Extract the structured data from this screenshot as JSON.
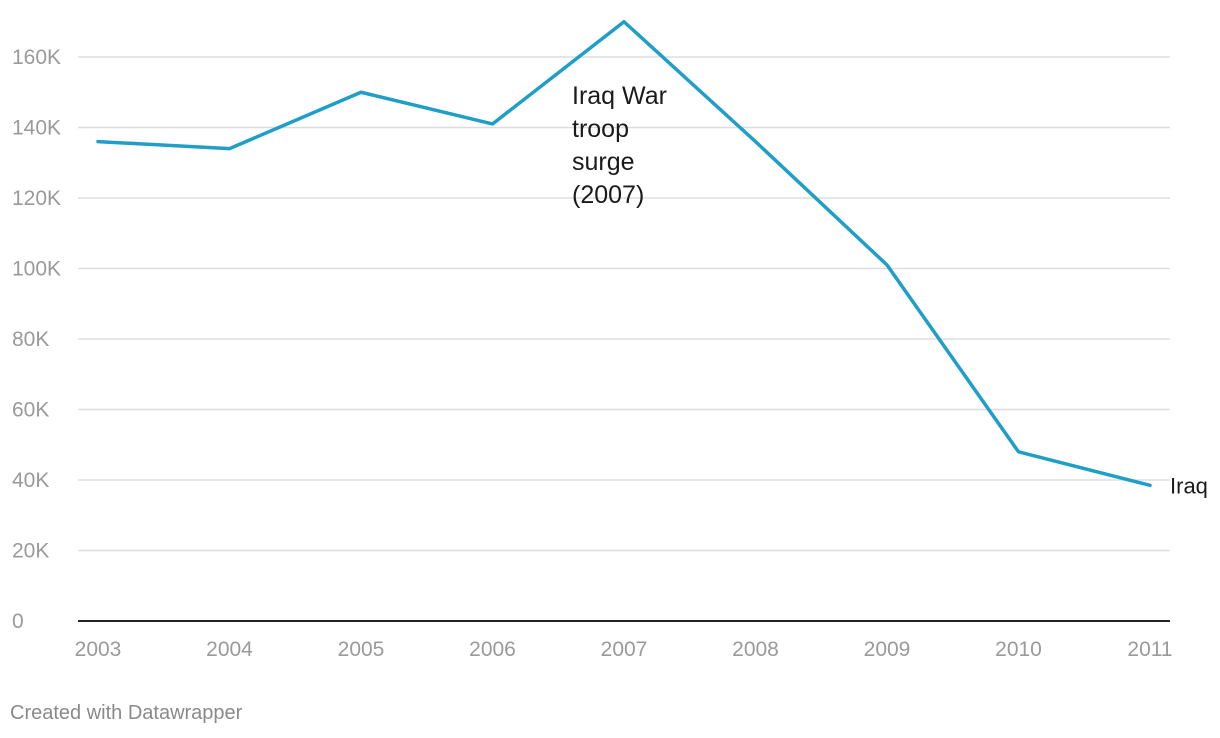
{
  "chart_data": {
    "type": "line",
    "x": [
      "2003",
      "2004",
      "2005",
      "2006",
      "2007",
      "2008",
      "2009",
      "2010",
      "2011"
    ],
    "series": [
      {
        "name": "Iraq",
        "values": [
          136000,
          134000,
          150000,
          141000,
          170000,
          136000,
          101000,
          48000,
          38500
        ]
      }
    ],
    "yticks": [
      {
        "value": 0,
        "label": "0"
      },
      {
        "value": 20000,
        "label": "20K"
      },
      {
        "value": 40000,
        "label": "40K"
      },
      {
        "value": 60000,
        "label": "60K"
      },
      {
        "value": 80000,
        "label": "80K"
      },
      {
        "value": 100000,
        "label": "100K"
      },
      {
        "value": 120000,
        "label": "120K"
      },
      {
        "value": 140000,
        "label": "140K"
      },
      {
        "value": 160000,
        "label": "160K"
      }
    ],
    "ylim": [
      0,
      160000
    ],
    "grid": true,
    "line_color": "#1f9fc7",
    "annotation": {
      "lines": [
        "Iraq War",
        "troop",
        "surge",
        "(2007)"
      ],
      "x": "2007"
    },
    "title": "",
    "xlabel": "",
    "ylabel": ""
  },
  "credit": "Created with Datawrapper"
}
